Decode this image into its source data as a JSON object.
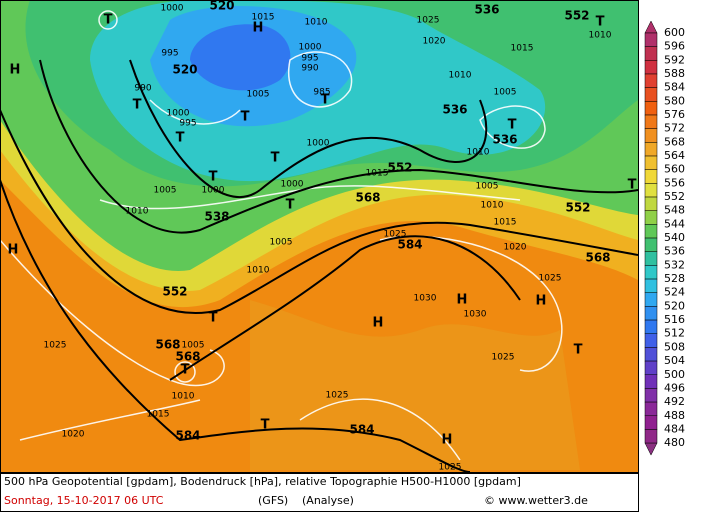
{
  "map": {
    "legend": {
      "labels": [
        600,
        596,
        592,
        588,
        584,
        580,
        576,
        572,
        568,
        564,
        560,
        556,
        552,
        548,
        544,
        540,
        536,
        532,
        528,
        524,
        520,
        516,
        512,
        508,
        504,
        500,
        496,
        492,
        488,
        484,
        480
      ],
      "colors": [
        "#b0306a",
        "#c03050",
        "#d03040",
        "#e04030",
        "#e85020",
        "#f06010",
        "#f07818",
        "#f09020",
        "#f0a828",
        "#f0c030",
        "#f0d838",
        "#e0e040",
        "#c0d840",
        "#90d048",
        "#60c858",
        "#40c070",
        "#30c0a0",
        "#30c8c8",
        "#30c0e0",
        "#30a8f0",
        "#3090f0",
        "#3078f0",
        "#4060e8",
        "#5050d8",
        "#6040c8",
        "#7030b8",
        "#8030a8",
        "#8a2898",
        "#902090",
        "#902888",
        "#8a3080"
      ]
    },
    "geopotential_labels": [
      520,
      536,
      552,
      520,
      536,
      536,
      552,
      568,
      538,
      552,
      584,
      568,
      552,
      568,
      568,
      584,
      584
    ],
    "pressure_labels": [
      1000,
      1015,
      1010,
      1025,
      1020,
      1010,
      1000,
      995,
      995,
      990,
      1015,
      1010,
      990,
      1005,
      985,
      1005,
      1000,
      995,
      1000,
      1010,
      1005,
      1000,
      1000,
      1015,
      1005,
      1010,
      1010,
      1015,
      1025,
      1005,
      1020,
      1010,
      1025,
      1030,
      1030,
      1025,
      1005,
      1025,
      1010,
      1025,
      1015,
      1020,
      1025
    ],
    "highs_lows": [
      "H",
      "T",
      "H",
      "T",
      "T",
      "T",
      "T",
      "T",
      "T",
      "T",
      "T",
      "T",
      "H",
      "T",
      "H",
      "H",
      "H",
      "T",
      "T",
      "H",
      "T",
      "T"
    ],
    "caption": {
      "line1": "500 hPa Geopotential [gpdam], Bodendruck [hPa], relative Topographie H500-H1000 [gpdam]",
      "date": "Sonntag, 15-10-2017  06 UTC",
      "model": "(GFS)",
      "run": "(Analyse)",
      "credit": "© www.wetter3.de"
    }
  }
}
